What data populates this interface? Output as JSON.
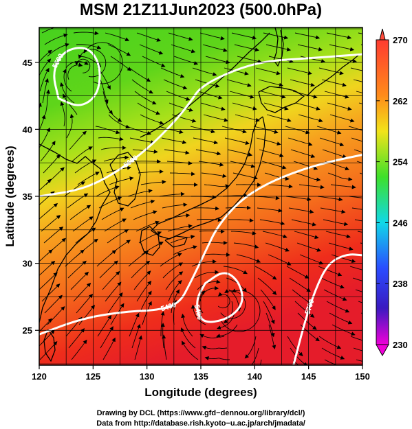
{
  "title": "MSM 21Z11Jun2023 (500.0hPa)",
  "credits": {
    "line1": "Drawing by DCL (https://www.gfd−dennou.org/library/dcl/)",
    "line2": "Data from http://database.rish.kyoto−u.ac.jp/arch/jmadata/"
  },
  "chart_data": {
    "type": "heatmap",
    "title": "MSM 21Z11Jun2023 (500.0hPa)",
    "xlabel": "Longitude (degrees)",
    "ylabel": "Latitude  (degrees)",
    "xlim": [
      120,
      150
    ],
    "ylim": [
      22.4,
      47.6
    ],
    "x_ticks": [
      "120",
      "125",
      "130",
      "135",
      "140",
      "145",
      "150"
    ],
    "y_ticks": [
      "25",
      "30",
      "35",
      "40",
      "45"
    ],
    "gridlines": true,
    "colorbar": {
      "min": 230,
      "max": 270,
      "ticks": [
        "270",
        "262",
        "254",
        "246",
        "238",
        "230"
      ],
      "colors": [
        "#e000e0",
        "#3030ff",
        "#00d0ff",
        "#00e040",
        "#e0e000",
        "#ff8000",
        "#ff2000"
      ]
    },
    "contours": [
      {
        "label": "5400",
        "points": [
          [
            120,
            24.7
          ],
          [
            124,
            25.9
          ],
          [
            128,
            26.4
          ],
          [
            131,
            26.5
          ],
          [
            133,
            27.0
          ],
          [
            134,
            28.5
          ],
          [
            135.5,
            31
          ],
          [
            136.5,
            32.7
          ],
          [
            138.5,
            34.6
          ],
          [
            141,
            35.9
          ],
          [
            144,
            36.9
          ],
          [
            147,
            37.6
          ],
          [
            150,
            38.1
          ]
        ]
      },
      {
        "label": "5400",
        "points": [
          [
            135.4,
            28.5
          ],
          [
            134.5,
            27.2
          ],
          [
            135,
            25.5
          ],
          [
            137.5,
            25.8
          ],
          [
            139,
            27
          ],
          [
            138.6,
            28.6
          ],
          [
            137.2,
            29.5
          ],
          [
            135.4,
            28.5
          ]
        ]
      },
      {
        "label": "5700",
        "points": [
          [
            143.6,
            22.4
          ],
          [
            144.6,
            25.5
          ],
          [
            145.6,
            28.0
          ],
          [
            146.8,
            30.0
          ],
          [
            148.5,
            30.7
          ],
          [
            150,
            30.6
          ]
        ]
      },
      {
        "label": "5600",
        "points": [
          [
            120,
            35.0
          ],
          [
            124,
            35.5
          ],
          [
            127,
            36.7
          ],
          [
            130,
            38.5
          ],
          [
            132.5,
            40.5
          ],
          [
            134,
            42
          ],
          [
            135,
            43.2
          ],
          [
            138,
            44.4
          ],
          [
            141,
            45.1
          ],
          [
            145,
            45.3
          ],
          [
            150,
            45.6
          ]
        ]
      },
      {
        "label": "5500",
        "points": [
          [
            121.8,
            42.3
          ],
          [
            121.2,
            44.3
          ],
          [
            122.3,
            45.9
          ],
          [
            124.5,
            46.2
          ],
          [
            125.7,
            44.8
          ],
          [
            125.5,
            42.6
          ],
          [
            123.8,
            41.6
          ],
          [
            121.8,
            42.3
          ]
        ]
      }
    ],
    "vortices": [
      {
        "name": "low",
        "lon": 123.4,
        "lat": 44.3
      },
      {
        "name": "typhoon",
        "lon": 136.2,
        "lat": 27.2
      }
    ]
  }
}
